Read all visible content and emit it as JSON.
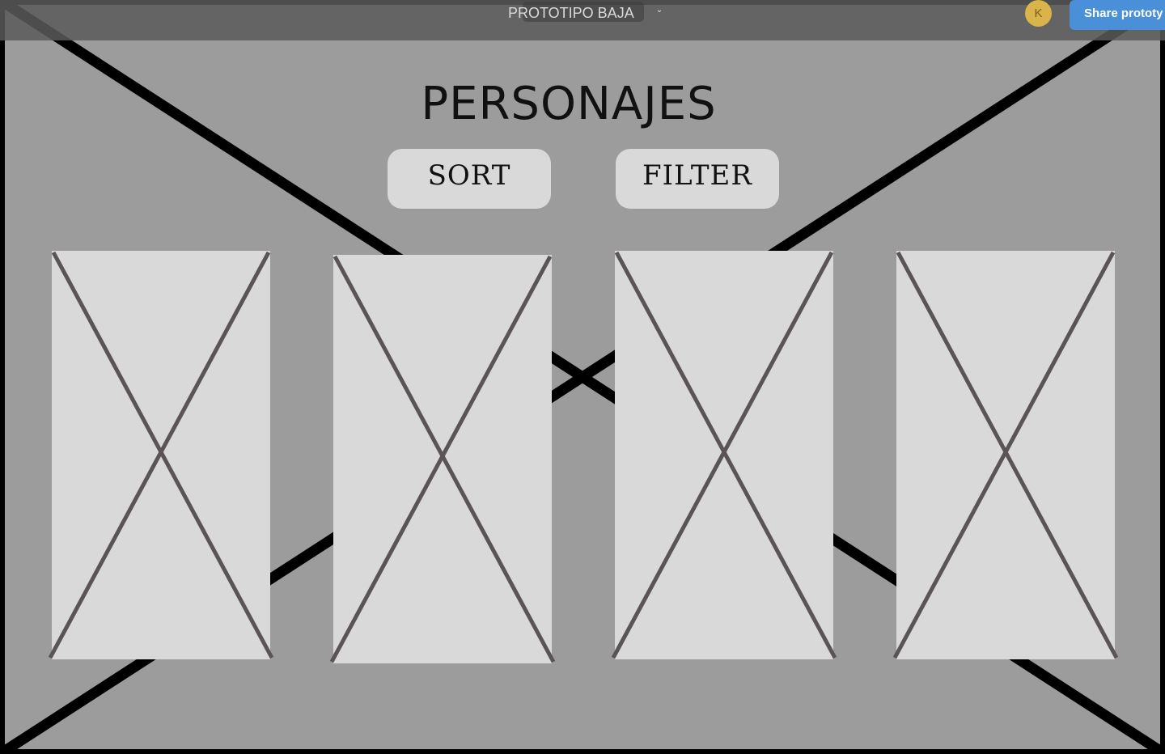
{
  "toolbar": {
    "prototype_title": "PROTOTIPO BAJA",
    "chevron_icon": "chevron-down-icon",
    "avatar_initial": "K",
    "avatar_color": "#d9b44a",
    "share_label": "Share prototy",
    "share_color": "#4a90d9"
  },
  "page": {
    "title": "PERSONAJES",
    "sort_label": "SORT",
    "filter_label": "FILTER",
    "background_color": "#9c9c9c",
    "card_color": "#d9d9d9"
  },
  "cards": [
    {
      "icon": "image-placeholder-icon"
    },
    {
      "icon": "image-placeholder-icon"
    },
    {
      "icon": "image-placeholder-icon"
    },
    {
      "icon": "image-placeholder-icon"
    }
  ]
}
